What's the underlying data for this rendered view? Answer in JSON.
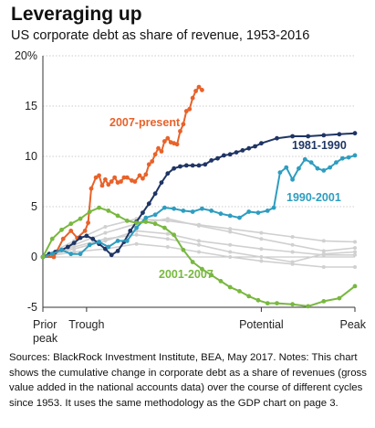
{
  "title": "Leveraging up",
  "subtitle": "US corporate debt as share of revenue, 1953-2016",
  "footer": "Sources: BlackRock Investment Institute, BEA, May 2017. Notes: This chart shows the cumulative change in corporate debt as a share of revenues (gross value added in the national accounts data) over the course of different cycles since 1953. It uses the same methodology as the GDP chart on page 3.",
  "chart_data": {
    "type": "line",
    "title": "Leveraging up",
    "subtitle": "US corporate debt as share of revenue, 1953-2016",
    "xlabel": "",
    "ylabel": "",
    "ylim": [
      -5,
      20
    ],
    "yticks": [
      -5,
      0,
      5,
      10,
      15,
      20
    ],
    "ytick_labels": [
      "-5",
      "0",
      "5",
      "10",
      "15",
      "20%"
    ],
    "xlim": [
      0,
      100
    ],
    "xticks": [
      {
        "x": 0,
        "label": "Prior\npeak"
      },
      {
        "x": 14,
        "label": "Trough"
      },
      {
        "x": 70,
        "label": "Potential"
      },
      {
        "x": 100,
        "label": "Peak"
      }
    ],
    "grid": "horizontal",
    "series": [
      {
        "name": "2007-present",
        "color": "#e8622a",
        "markers": true,
        "x": [
          0,
          3.5,
          6.5,
          9,
          11,
          13.5,
          14.5,
          15.5,
          17,
          18,
          19,
          20,
          21,
          22,
          23,
          24,
          25,
          26,
          27,
          28.5,
          29.5,
          31,
          32,
          33,
          34,
          35,
          36,
          37,
          38,
          39,
          40,
          41,
          42,
          43,
          44,
          45,
          46,
          47,
          48,
          49,
          50,
          51
        ],
        "y": [
          0,
          0,
          1.8,
          2.6,
          1.9,
          2.6,
          3.4,
          6.8,
          7.9,
          8.1,
          7.1,
          7.7,
          7.2,
          7.5,
          7.9,
          7.4,
          7.5,
          7.9,
          7.9,
          7.6,
          7.5,
          8.1,
          7.8,
          8.2,
          9.2,
          9.5,
          10.2,
          10.8,
          10.5,
          11.5,
          11.8,
          11.4,
          11.3,
          11.2,
          12.5,
          13.2,
          14.5,
          14.7,
          15.8,
          16.5,
          16.9,
          16.6
        ]
      },
      {
        "name": "1981-1990",
        "color": "#1f3564",
        "markers": true,
        "x": [
          0,
          2,
          4,
          6,
          8,
          10,
          12,
          14,
          16,
          18,
          20,
          22,
          24,
          26,
          28,
          30,
          32,
          34,
          36,
          38,
          40,
          42,
          44,
          46,
          48,
          50,
          52,
          54,
          56,
          58,
          60,
          62,
          64,
          66,
          68,
          70,
          75,
          80,
          85,
          90,
          95,
          100
        ],
        "y": [
          0,
          0.3,
          0.5,
          0.7,
          1.0,
          1.4,
          1.9,
          2.1,
          1.8,
          1.3,
          0.8,
          0.2,
          0.6,
          1.5,
          2.6,
          3.5,
          4.4,
          5.3,
          6.3,
          7.4,
          8.3,
          8.8,
          9.0,
          9.1,
          9.1,
          9.1,
          9.2,
          9.6,
          9.8,
          10.1,
          10.2,
          10.4,
          10.6,
          10.8,
          11.0,
          11.3,
          11.8,
          12.0,
          12.0,
          12.1,
          12.2,
          12.3
        ]
      },
      {
        "name": "1990-2001",
        "color": "#2e9dc0",
        "markers": true,
        "x": [
          0,
          3,
          6,
          9,
          12,
          15,
          18,
          21,
          24,
          27,
          30,
          33,
          36,
          39,
          42,
          45,
          48,
          51,
          54,
          57,
          60,
          63,
          66,
          69,
          72,
          74,
          76,
          78,
          80,
          82,
          84,
          86,
          88,
          90,
          92,
          94,
          96,
          98,
          100
        ],
        "y": [
          0,
          0.3,
          0.7,
          0.3,
          0.3,
          1.2,
          1.5,
          1.0,
          1.6,
          1.6,
          2.9,
          3.9,
          4.2,
          4.9,
          4.8,
          4.6,
          4.5,
          4.8,
          4.6,
          4.3,
          4.1,
          3.9,
          4.5,
          4.4,
          4.6,
          4.9,
          8.4,
          8.9,
          7.7,
          8.8,
          9.7,
          9.4,
          8.8,
          8.6,
          8.9,
          9.4,
          9.8,
          9.9,
          10.1
        ]
      },
      {
        "name": "2001-2007",
        "color": "#78b83f",
        "markers": true,
        "x": [
          0,
          3,
          6,
          9,
          12,
          15,
          18,
          21,
          24,
          27,
          30,
          33,
          36,
          39,
          42,
          45,
          48,
          51,
          54,
          57,
          60,
          63,
          66,
          69,
          72,
          75,
          80,
          85,
          90,
          95,
          100
        ],
        "y": [
          0,
          1.8,
          2.7,
          3.3,
          3.8,
          4.5,
          4.9,
          4.6,
          4.1,
          3.6,
          3.4,
          3.5,
          3.3,
          2.9,
          2.2,
          0.7,
          -0.5,
          -1.2,
          -1.8,
          -2.4,
          -3.0,
          -3.4,
          -3.9,
          -4.3,
          -4.6,
          -4.6,
          -4.7,
          -4.9,
          -4.4,
          -4.1,
          -2.9
        ]
      },
      {
        "name": "",
        "color": "#d0d0d0",
        "markers": true,
        "x": [
          0,
          10,
          20,
          30,
          40,
          50,
          60,
          70,
          80,
          90,
          100
        ],
        "y": [
          0,
          1.6,
          3.0,
          3.8,
          3.6,
          3.2,
          2.8,
          2.4,
          2.0,
          1.6,
          1.5
        ]
      },
      {
        "name": "",
        "color": "#d0d0d0",
        "markers": true,
        "x": [
          0,
          10,
          20,
          30,
          40,
          50,
          60,
          70,
          80,
          90,
          100
        ],
        "y": [
          0,
          1.2,
          2.4,
          3.3,
          3.8,
          3.1,
          2.5,
          1.8,
          1.2,
          0.6,
          0.9
        ]
      },
      {
        "name": "",
        "color": "#d0d0d0",
        "markers": true,
        "x": [
          0,
          10,
          20,
          30,
          40,
          50,
          60,
          70,
          80,
          90,
          100
        ],
        "y": [
          0,
          0.8,
          1.6,
          2.6,
          2.3,
          1.6,
          1.2,
          0.8,
          0.5,
          0.2,
          0.2
        ]
      },
      {
        "name": "",
        "color": "#d0d0d0",
        "markers": true,
        "x": [
          0,
          10,
          20,
          30,
          40,
          50,
          60,
          70,
          80,
          90,
          100
        ],
        "y": [
          0,
          0.5,
          0.8,
          1.3,
          1.0,
          0.5,
          0.0,
          -0.4,
          -0.7,
          -1.0,
          -1.0
        ]
      },
      {
        "name": "",
        "color": "#d0d0d0",
        "markers": true,
        "x": [
          0,
          10,
          20,
          30,
          40,
          50,
          60,
          70,
          80,
          90,
          100
        ],
        "y": [
          0,
          1.0,
          1.8,
          2.2,
          1.8,
          1.2,
          0.5,
          0.0,
          -0.5,
          0.3,
          0.5
        ]
      }
    ],
    "labels": [
      {
        "text": "2007-present",
        "series": 0
      },
      {
        "text": "1981-1990",
        "series": 1
      },
      {
        "text": "1990-2001",
        "series": 2
      },
      {
        "text": "2001-2007",
        "series": 3
      }
    ]
  }
}
